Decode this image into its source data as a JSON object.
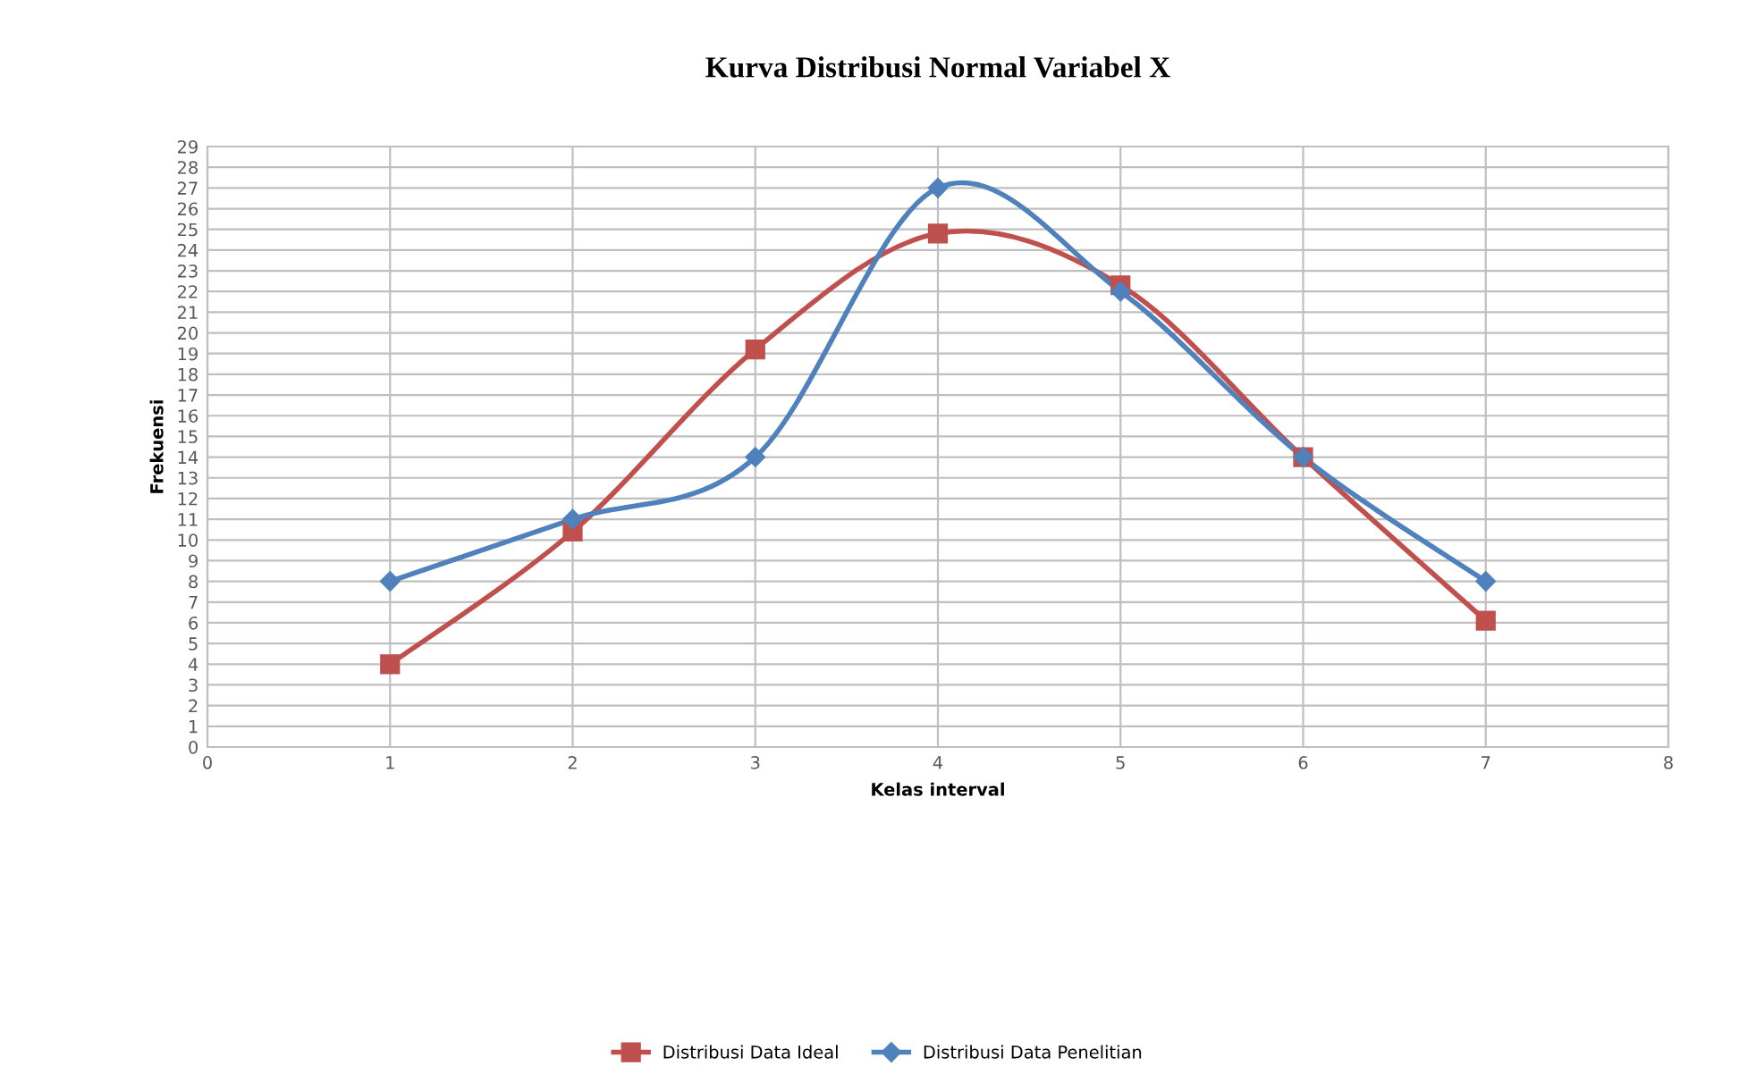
{
  "chart_data": {
    "type": "line",
    "title": "Kurva Distribusi Normal Variabel X",
    "xlabel": "Kelas interval",
    "ylabel": "Frekuensi",
    "x": [
      1,
      2,
      3,
      4,
      5,
      6,
      7
    ],
    "series": [
      {
        "name": "Distribusi Data Ideal",
        "color": "#c0504d",
        "marker": "square",
        "values": [
          4,
          10.4,
          19.2,
          24.8,
          22.3,
          14,
          6.1
        ]
      },
      {
        "name": "Distribusi Data Penelitian",
        "color": "#4f81bd",
        "marker": "diamond",
        "values": [
          8,
          11,
          14,
          27,
          22,
          14,
          8
        ]
      }
    ],
    "xlim": [
      0,
      8
    ],
    "xticks": [
      0,
      1,
      2,
      3,
      4,
      5,
      6,
      7,
      8
    ],
    "ylim": [
      0,
      29
    ],
    "yticks": [
      0,
      1,
      2,
      3,
      4,
      5,
      6,
      7,
      8,
      9,
      10,
      11,
      12,
      13,
      14,
      15,
      16,
      17,
      18,
      19,
      20,
      21,
      22,
      23,
      24,
      25,
      26,
      27,
      28,
      29
    ],
    "grid": true,
    "legend": "bottom",
    "line_style": "solid"
  }
}
